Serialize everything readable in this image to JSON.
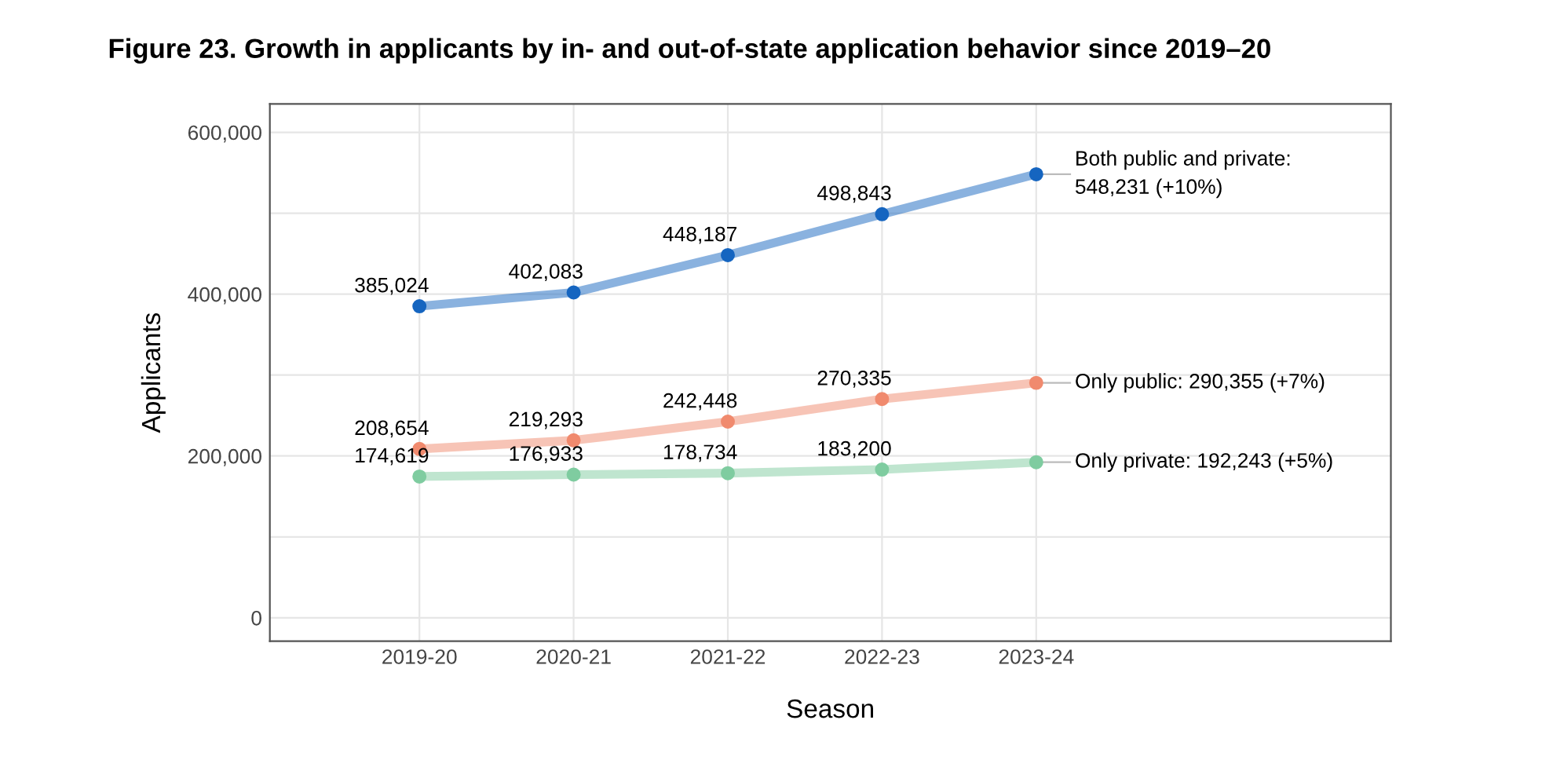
{
  "chart_data": {
    "type": "line",
    "title": "Figure 23. Growth in applicants by in- and out-of-state application behavior since 2019–20",
    "xlabel": "Season",
    "ylabel": "Applicants",
    "categories": [
      "2019-20",
      "2020-21",
      "2021-22",
      "2022-23",
      "2023-24"
    ],
    "series": [
      {
        "color": "#1565c0",
        "values": [
          385024,
          402083,
          448187,
          498843,
          548231
        ],
        "value_labels": [
          "385,024",
          "402,083",
          "448,187",
          "498,843",
          "Both public and private:\n548,231 (+10%)"
        ]
      },
      {
        "color": "#f08a6e",
        "values": [
          208654,
          219293,
          242448,
          270335,
          290355
        ],
        "value_labels": [
          "208,654",
          "219,293",
          "242,448",
          "270,335",
          "Only public: 290,355 (+7%)"
        ]
      },
      {
        "color": "#7fcca0",
        "values": [
          174619,
          176933,
          178734,
          183200,
          192243
        ],
        "value_labels": [
          "174,619",
          "176,933",
          "178,734",
          "183,200",
          "Only private: 192,243 (+5%)"
        ]
      }
    ],
    "ylim": [
      -29000,
      635000
    ],
    "yticks": [
      {
        "value": 0,
        "label": "0"
      },
      {
        "value": 100000,
        "label": null
      },
      {
        "value": 200000,
        "label": "200,000"
      },
      {
        "value": 300000,
        "label": null
      },
      {
        "value": 400000,
        "label": "400,000"
      },
      {
        "value": 500000,
        "label": null
      },
      {
        "value": 600000,
        "label": "600,000"
      }
    ],
    "grid": true,
    "marker": "circle",
    "line_style": "solid",
    "legend": false
  }
}
